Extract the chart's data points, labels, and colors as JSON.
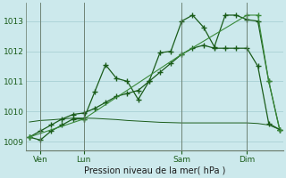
{
  "background_color": "#cce9ec",
  "grid_color": "#aed4d8",
  "line_color_dark": "#1a5c1a",
  "line_color_light": "#3a8a3a",
  "xlabel": "Pression niveau de la mer( hPa )",
  "ylim": [
    1008.7,
    1013.6
  ],
  "yticks": [
    1009,
    1010,
    1011,
    1012,
    1013
  ],
  "xtick_labels": [
    "Ven",
    "Lun",
    "Sam",
    "Dim"
  ],
  "xtick_positions": [
    1,
    5,
    14,
    20
  ],
  "vline_positions": [
    1,
    5,
    14,
    20
  ],
  "total_points": 24,
  "series1_x": [
    0,
    1,
    2,
    3,
    4,
    5,
    6,
    7,
    8,
    9,
    10,
    11,
    12,
    13,
    14,
    15,
    16,
    17,
    18,
    19,
    20,
    21,
    22,
    23
  ],
  "series1_y": [
    1009.15,
    1009.05,
    1009.35,
    1009.55,
    1009.75,
    1009.75,
    1010.65,
    1011.55,
    1011.1,
    1011.0,
    1010.4,
    1011.0,
    1011.95,
    1012.0,
    1013.0,
    1013.2,
    1012.8,
    1012.15,
    1013.2,
    1013.2,
    1013.05,
    1013.0,
    1011.0,
    1009.4
  ],
  "series2_x": [
    0,
    1,
    2,
    3,
    4,
    5,
    6,
    7,
    8,
    9,
    10,
    11,
    12,
    13,
    14,
    15,
    16,
    17,
    18,
    19,
    20,
    21,
    22,
    23
  ],
  "series2_y": [
    1009.15,
    1009.35,
    1009.55,
    1009.75,
    1009.9,
    1009.95,
    1010.1,
    1010.3,
    1010.5,
    1010.6,
    1010.7,
    1011.0,
    1011.3,
    1011.6,
    1011.9,
    1012.1,
    1012.2,
    1012.1,
    1012.1,
    1012.1,
    1012.1,
    1011.5,
    1009.6,
    1009.4
  ],
  "series3_x": [
    0,
    5,
    14,
    20,
    21,
    22,
    23
  ],
  "series3_y": [
    1009.15,
    1009.75,
    1011.9,
    1013.2,
    1013.2,
    1011.0,
    1009.4
  ],
  "series4_x": [
    0,
    1,
    2,
    3,
    4,
    5,
    6,
    7,
    8,
    9,
    10,
    11,
    12,
    13,
    14,
    15,
    16,
    17,
    18,
    19,
    20,
    21,
    22,
    23
  ],
  "series4_y": [
    1009.65,
    1009.7,
    1009.72,
    1009.75,
    1009.78,
    1009.78,
    1009.77,
    1009.75,
    1009.73,
    1009.7,
    1009.68,
    1009.66,
    1009.64,
    1009.63,
    1009.62,
    1009.62,
    1009.62,
    1009.62,
    1009.62,
    1009.62,
    1009.62,
    1009.6,
    1009.55,
    1009.4
  ]
}
